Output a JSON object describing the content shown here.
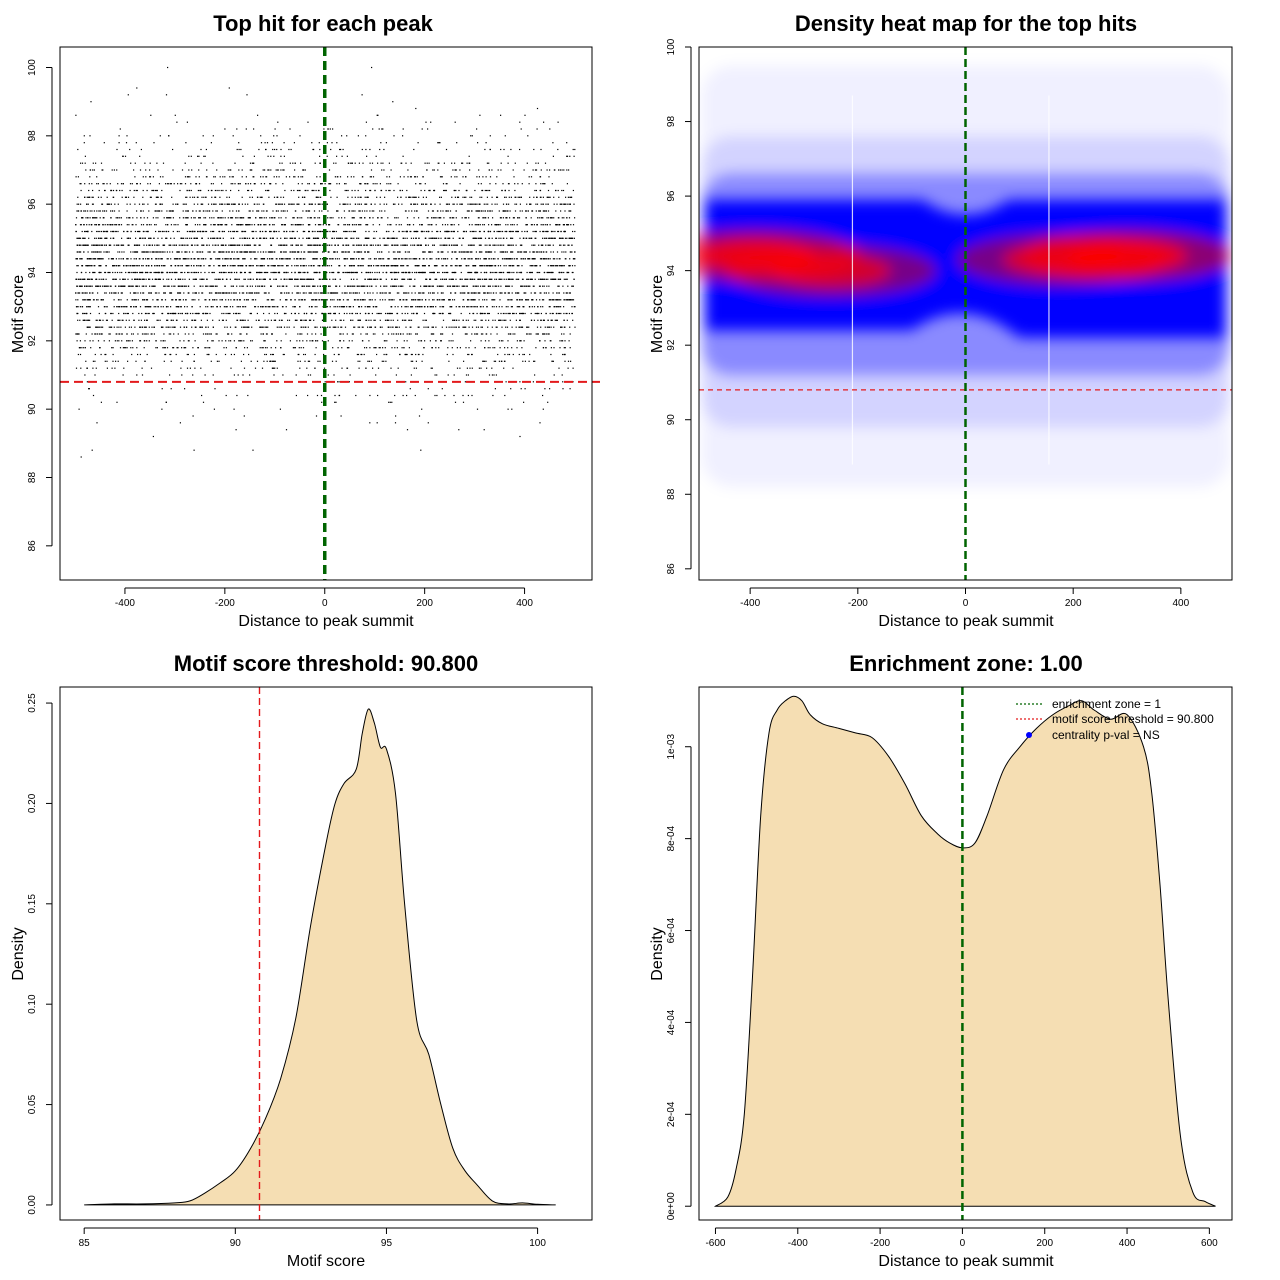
{
  "colors": {
    "density_fill": "#F5DEB3",
    "threshold_line": "#E31A1C",
    "center_line": "#006400",
    "heat_low": "#ffffff",
    "heat_mid": "#0000ff",
    "heat_high": "#ff0000",
    "centrality_point": "#0000ff"
  },
  "chart_data": [
    {
      "type": "scatter",
      "title": "Top hit for each peak",
      "xlabel": "Distance to peak summit",
      "ylabel": "Motif score",
      "xlim": [
        -530,
        535
      ],
      "ylim": [
        85,
        100.6
      ],
      "x_ticks": [
        -400,
        -200,
        0,
        200,
        400
      ],
      "y_ticks": [
        86,
        88,
        90,
        92,
        94,
        96,
        98,
        100
      ],
      "x_range_points": [
        -500,
        500
      ],
      "score_center": 94.2,
      "threshold": 90.8,
      "center_line_x": 0,
      "point_count": 7000
    },
    {
      "type": "heatmap",
      "title": "Density heat map for the top hits",
      "xlabel": "Distance to peak summit",
      "ylabel": "Motif score",
      "xlim": [
        -495,
        495
      ],
      "ylim": [
        85.7,
        100
      ],
      "x_ticks": [
        -400,
        -200,
        0,
        200,
        400
      ],
      "y_ticks": [
        86,
        88,
        90,
        92,
        94,
        96,
        98,
        100
      ],
      "threshold": 90.8,
      "center_line_x": 0,
      "hotspots": [
        {
          "x": -390,
          "y": 94.4,
          "intensity": 1.0
        },
        {
          "x": -250,
          "y": 94.0,
          "intensity": 0.85
        },
        {
          "x": 180,
          "y": 94.3,
          "intensity": 0.85
        },
        {
          "x": 300,
          "y": 94.4,
          "intensity": 1.0
        }
      ]
    },
    {
      "type": "area",
      "title": "Motif score threshold: 90.800",
      "xlabel": "Motif score",
      "ylabel": "Density",
      "xlim": [
        84.2,
        101.8
      ],
      "ylim": [
        -0.0075,
        0.258
      ],
      "x_ticks": [
        85,
        90,
        95,
        100
      ],
      "y_ticks": [
        0.0,
        0.05,
        0.1,
        0.15,
        0.2,
        0.25
      ],
      "y_tick_labels": [
        "0.00",
        "0.05",
        "0.10",
        "0.15",
        "0.20",
        "0.25"
      ],
      "threshold": 90.8,
      "x": [
        85,
        86,
        87,
        88,
        88.5,
        89,
        89.5,
        90,
        90.5,
        91,
        91.5,
        92,
        92.5,
        93,
        93.3,
        93.6,
        94,
        94.2,
        94.4,
        94.6,
        94.8,
        95,
        95.3,
        95.6,
        96,
        96.4,
        96.8,
        97.2,
        97.6,
        98,
        98.5,
        99,
        99.5,
        100,
        100.6
      ],
      "y": [
        0.0,
        0.0005,
        0.0005,
        0.001,
        0.002,
        0.006,
        0.011,
        0.017,
        0.028,
        0.043,
        0.063,
        0.093,
        0.14,
        0.18,
        0.2,
        0.21,
        0.217,
        0.235,
        0.247,
        0.24,
        0.228,
        0.227,
        0.205,
        0.15,
        0.092,
        0.075,
        0.05,
        0.028,
        0.017,
        0.01,
        0.002,
        0.0005,
        0.001,
        0.0003,
        0.0
      ]
    },
    {
      "type": "area",
      "title": "Enrichment zone: 1.00",
      "xlabel": "Distance to peak summit",
      "ylabel": "Density",
      "xlim": [
        -640,
        655
      ],
      "ylim": [
        -3e-05,
        0.00113
      ],
      "x_ticks": [
        -600,
        -400,
        -200,
        0,
        200,
        400,
        600
      ],
      "y_ticks": [
        0,
        0.0002,
        0.0004,
        0.0006,
        0.0008,
        0.001
      ],
      "y_tick_labels": [
        "0e+00",
        "2e-04",
        "4e-04",
        "6e-04",
        "8e-04",
        "1e-03"
      ],
      "center_line_x": 0,
      "x": [
        -600,
        -570,
        -550,
        -530,
        -510,
        -490,
        -470,
        -450,
        -430,
        -410,
        -390,
        -370,
        -340,
        -300,
        -260,
        -220,
        -180,
        -140,
        -100,
        -60,
        -30,
        0,
        30,
        60,
        100,
        140,
        180,
        220,
        260,
        290,
        320,
        360,
        400,
        440,
        460,
        480,
        500,
        530,
        560,
        590,
        615
      ],
      "y": [
        0.0,
        2e-05,
        8e-05,
        0.0002,
        0.0005,
        0.00085,
        0.00103,
        0.00108,
        0.0011,
        0.00111,
        0.0011,
        0.00107,
        0.00105,
        0.00104,
        0.00103,
        0.00102,
        0.00098,
        0.00092,
        0.00085,
        0.00081,
        0.00079,
        0.00078,
        0.00079,
        0.00085,
        0.00095,
        0.001,
        0.00104,
        0.00107,
        0.00109,
        0.0011,
        0.00108,
        0.00106,
        0.00107,
        0.001,
        0.0009,
        0.0007,
        0.00045,
        0.00015,
        3e-05,
        1e-05,
        0.0
      ],
      "legend": {
        "position": "top-right",
        "entries": [
          {
            "label": "enrichment zone = 1",
            "kind": "dotted-line",
            "color": "#006400"
          },
          {
            "label": "motif score threshold = 90.800",
            "kind": "dotted-line",
            "color": "#E31A1C"
          },
          {
            "label": "centrality p-val = NS",
            "kind": "point",
            "color": "#0000ff"
          }
        ]
      }
    }
  ]
}
